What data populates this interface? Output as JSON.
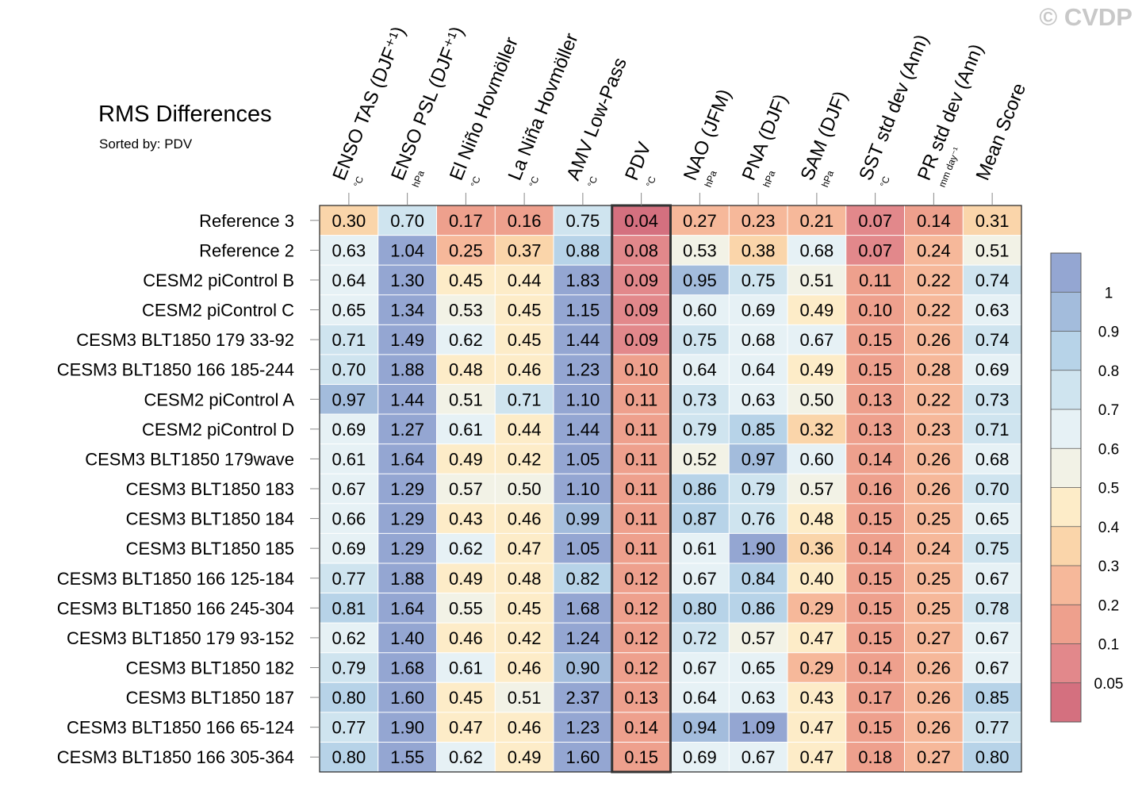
{
  "watermark": "© CVDP",
  "chart_data": {
    "type": "heatmap",
    "title": "RMS Differences",
    "subtitle": "Sorted by: PDV",
    "columns": [
      {
        "name": "ENSO TAS (DJF⁺¹)",
        "unit": "°C"
      },
      {
        "name": "ENSO PSL (DJF⁺¹)",
        "unit": "hPa"
      },
      {
        "name": "El Niño Hovmöller",
        "unit": "°C"
      },
      {
        "name": "La Niña Hovmöller",
        "unit": "°C"
      },
      {
        "name": "AMV Low-Pass",
        "unit": "°C"
      },
      {
        "name": "PDV",
        "unit": "°C"
      },
      {
        "name": "NAO (JFM)",
        "unit": "hPa"
      },
      {
        "name": "PNA (DJF)",
        "unit": "hPa"
      },
      {
        "name": "SAM (DJF)",
        "unit": "hPa"
      },
      {
        "name": "SST std dev (Ann)",
        "unit": "°C"
      },
      {
        "name": "PR std dev (Ann)",
        "unit": "mm day⁻¹"
      },
      {
        "name": "Mean Score",
        "unit": ""
      }
    ],
    "highlight_column": "PDV",
    "rows": [
      "Reference 3",
      "Reference 2",
      "CESM2 piControl B",
      "CESM2 piControl C",
      "CESM3 BLT1850 179 33-92",
      "CESM3 BLT1850 166 185-244",
      "CESM2 piControl A",
      "CESM2 piControl D",
      "CESM3 BLT1850 179wave",
      "CESM3 BLT1850 183",
      "CESM3 BLT1850 184",
      "CESM3 BLT1850 185",
      "CESM3 BLT1850 166 125-184",
      "CESM3 BLT1850 166 245-304",
      "CESM3 BLT1850 179 93-152",
      "CESM3 BLT1850 182",
      "CESM3 BLT1850 187",
      "CESM3 BLT1850 166 65-124",
      "CESM3 BLT1850 166 305-364"
    ],
    "values": [
      [
        0.3,
        0.7,
        0.17,
        0.16,
        0.75,
        0.04,
        0.27,
        0.23,
        0.21,
        0.07,
        0.14,
        0.31
      ],
      [
        0.63,
        1.04,
        0.25,
        0.37,
        0.88,
        0.08,
        0.53,
        0.38,
        0.68,
        0.07,
        0.24,
        0.51
      ],
      [
        0.64,
        1.3,
        0.45,
        0.44,
        1.83,
        0.09,
        0.95,
        0.75,
        0.51,
        0.11,
        0.22,
        0.74
      ],
      [
        0.65,
        1.34,
        0.53,
        0.45,
        1.15,
        0.09,
        0.6,
        0.69,
        0.49,
        0.1,
        0.22,
        0.63
      ],
      [
        0.71,
        1.49,
        0.62,
        0.45,
        1.44,
        0.09,
        0.75,
        0.68,
        0.67,
        0.15,
        0.26,
        0.74
      ],
      [
        0.7,
        1.88,
        0.48,
        0.46,
        1.23,
        0.1,
        0.64,
        0.64,
        0.49,
        0.15,
        0.28,
        0.69
      ],
      [
        0.97,
        1.44,
        0.51,
        0.71,
        1.1,
        0.11,
        0.73,
        0.63,
        0.5,
        0.13,
        0.22,
        0.73
      ],
      [
        0.69,
        1.27,
        0.61,
        0.44,
        1.44,
        0.11,
        0.79,
        0.85,
        0.32,
        0.13,
        0.23,
        0.71
      ],
      [
        0.61,
        1.64,
        0.49,
        0.42,
        1.05,
        0.11,
        0.52,
        0.97,
        0.6,
        0.14,
        0.26,
        0.68
      ],
      [
        0.67,
        1.29,
        0.57,
        0.5,
        1.1,
        0.11,
        0.86,
        0.79,
        0.57,
        0.16,
        0.26,
        0.7
      ],
      [
        0.66,
        1.29,
        0.43,
        0.46,
        0.99,
        0.11,
        0.87,
        0.76,
        0.48,
        0.15,
        0.25,
        0.65
      ],
      [
        0.69,
        1.29,
        0.62,
        0.47,
        1.05,
        0.11,
        0.61,
        1.9,
        0.36,
        0.14,
        0.24,
        0.75
      ],
      [
        0.77,
        1.88,
        0.49,
        0.48,
        0.82,
        0.12,
        0.67,
        0.84,
        0.4,
        0.15,
        0.25,
        0.67
      ],
      [
        0.81,
        1.64,
        0.55,
        0.45,
        1.68,
        0.12,
        0.8,
        0.86,
        0.29,
        0.15,
        0.25,
        0.78
      ],
      [
        0.62,
        1.4,
        0.46,
        0.42,
        1.24,
        0.12,
        0.72,
        0.57,
        0.47,
        0.15,
        0.27,
        0.67
      ],
      [
        0.79,
        1.68,
        0.61,
        0.46,
        0.9,
        0.12,
        0.67,
        0.65,
        0.29,
        0.14,
        0.26,
        0.67
      ],
      [
        0.8,
        1.6,
        0.45,
        0.51,
        2.37,
        0.13,
        0.64,
        0.63,
        0.43,
        0.17,
        0.26,
        0.85
      ],
      [
        0.77,
        1.9,
        0.47,
        0.46,
        1.23,
        0.14,
        0.94,
        1.09,
        0.47,
        0.15,
        0.26,
        0.77
      ],
      [
        0.8,
        1.55,
        0.62,
        0.49,
        1.6,
        0.15,
        0.69,
        0.67,
        0.47,
        0.18,
        0.27,
        0.8
      ]
    ],
    "colorbar": {
      "levels": [
        "0.05",
        "0.1",
        "0.2",
        "0.3",
        "0.4",
        "0.5",
        "0.6",
        "0.7",
        "0.8",
        "0.9",
        "1"
      ],
      "boundaries": [
        0.05,
        0.1,
        0.2,
        0.3,
        0.4,
        0.5,
        0.6,
        0.7,
        0.8,
        0.9,
        1
      ],
      "colors": [
        "#d4707f",
        "#e2888b",
        "#eea08d",
        "#f6b89a",
        "#fad5aa",
        "#fdecc8",
        "#f2f2e6",
        "#e6f1f5",
        "#cfe4ef",
        "#b7d3e8",
        "#a3bcdc",
        "#94a6d2"
      ]
    }
  }
}
